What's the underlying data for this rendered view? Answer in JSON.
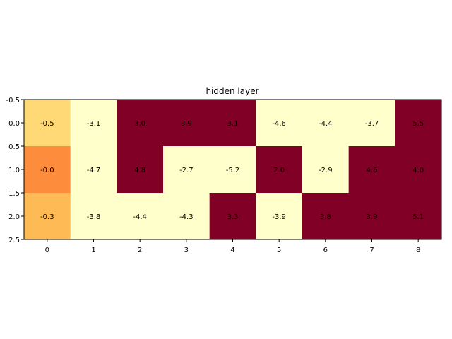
{
  "chart_data": {
    "type": "heatmap",
    "title": "hidden layer",
    "xlabel": "",
    "ylabel": "",
    "x_ticks": [
      "0",
      "1",
      "2",
      "3",
      "4",
      "5",
      "6",
      "7",
      "8"
    ],
    "y_ticks": [
      "-0.5",
      "0.0",
      "0.5",
      "1.0",
      "1.5",
      "2.0",
      "2.5"
    ],
    "xlim": [
      -0.5,
      8.5
    ],
    "ylim": [
      2.5,
      -0.5
    ],
    "colormap": "YlOrRd",
    "color_range": [
      -1.0,
      1.0
    ],
    "grid": false,
    "values": [
      [
        -0.5,
        -3.1,
        3.0,
        3.9,
        3.1,
        -4.6,
        -4.4,
        -3.7,
        5.5
      ],
      [
        -0.0,
        -4.7,
        4.8,
        -2.7,
        -5.2,
        2.0,
        -2.9,
        4.6,
        4.0
      ],
      [
        -0.3,
        -3.8,
        -4.4,
        -4.3,
        3.3,
        -3.9,
        3.8,
        3.9,
        5.1
      ]
    ],
    "labels": [
      [
        "-0.5",
        "-3.1",
        "3.0",
        "3.9",
        "3.1",
        "-4.6",
        "-4.4",
        "-3.7",
        "5.5"
      ],
      [
        "-0.0",
        "-4.7",
        "4.8",
        "-2.7",
        "-5.2",
        "2.0",
        "-2.9",
        "4.6",
        "4.0"
      ],
      [
        "-0.3",
        "-3.8",
        "-4.4",
        "-4.3",
        "3.3",
        "-3.9",
        "3.8",
        "3.9",
        "5.1"
      ]
    ]
  }
}
